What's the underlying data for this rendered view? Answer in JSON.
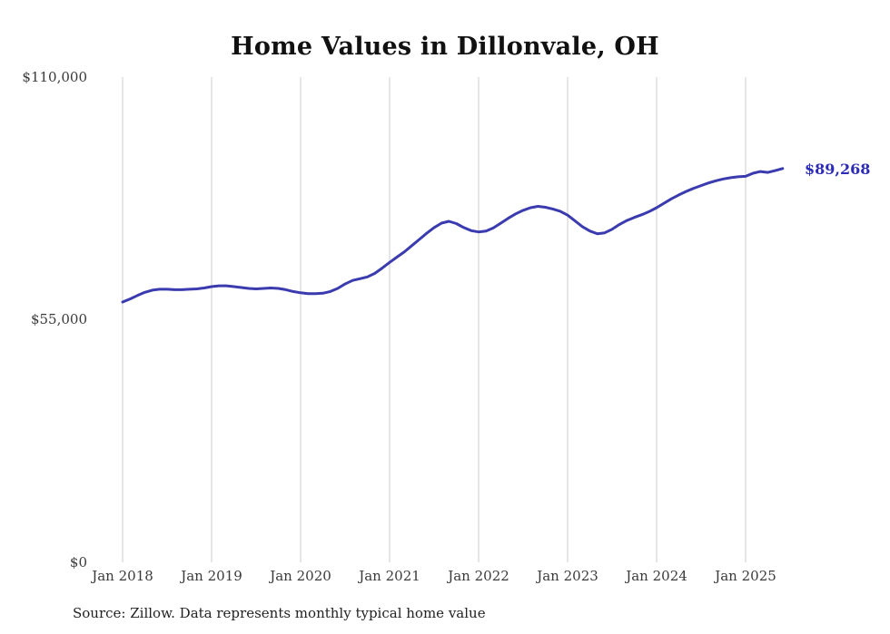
{
  "chart_data": {
    "type": "line",
    "title": "Home Values in Dillonvale, OH",
    "source": "Source: Zillow. Data represents monthly typical home value",
    "end_label": "$89,268",
    "final_value": 89268,
    "unit": "USD",
    "ylim": [
      0,
      110000
    ],
    "ytick_labels": [
      "$110,000",
      "$55,000",
      "$0"
    ],
    "xtick_labels": [
      "Jan 2018",
      "Jan 2019",
      "Jan 2020",
      "Jan 2021",
      "Jan 2022",
      "Jan 2023",
      "Jan 2024",
      "Jan 2025"
    ],
    "grid": "vertical-only",
    "legend": "none",
    "line_color": "#3b3bb0",
    "end_label_color": "#2b2bb8",
    "grid_color": "#cccccc",
    "background_color": "#ffffff",
    "x_start": "2018-01",
    "x_end": "2025-06",
    "x_frequency": "monthly",
    "months": [
      "2018-01",
      "2018-02",
      "2018-03",
      "2018-04",
      "2018-05",
      "2018-06",
      "2018-07",
      "2018-08",
      "2018-09",
      "2018-10",
      "2018-11",
      "2018-12",
      "2019-01",
      "2019-02",
      "2019-03",
      "2019-04",
      "2019-05",
      "2019-06",
      "2019-07",
      "2019-08",
      "2019-09",
      "2019-10",
      "2019-11",
      "2019-12",
      "2020-01",
      "2020-02",
      "2020-03",
      "2020-04",
      "2020-05",
      "2020-06",
      "2020-07",
      "2020-08",
      "2020-09",
      "2020-10",
      "2020-11",
      "2020-12",
      "2021-01",
      "2021-02",
      "2021-03",
      "2021-04",
      "2021-05",
      "2021-06",
      "2021-07",
      "2021-08",
      "2021-09",
      "2021-10",
      "2021-11",
      "2021-12",
      "2022-01",
      "2022-02",
      "2022-03",
      "2022-04",
      "2022-05",
      "2022-06",
      "2022-07",
      "2022-08",
      "2022-09",
      "2022-10",
      "2022-11",
      "2022-12",
      "2023-01",
      "2023-02",
      "2023-03",
      "2023-04",
      "2023-05",
      "2023-06",
      "2023-07",
      "2023-08",
      "2023-09",
      "2023-10",
      "2023-11",
      "2023-12",
      "2024-01",
      "2024-02",
      "2024-03",
      "2024-04",
      "2024-05",
      "2024-06",
      "2024-07",
      "2024-08",
      "2024-09",
      "2024-10",
      "2024-11",
      "2024-12",
      "2025-01",
      "2025-02",
      "2025-03",
      "2025-04",
      "2025-05",
      "2025-06"
    ],
    "values": [
      59000,
      59700,
      60500,
      61200,
      61700,
      61900,
      61900,
      61800,
      61800,
      61900,
      62000,
      62200,
      62500,
      62700,
      62700,
      62500,
      62300,
      62100,
      62000,
      62100,
      62200,
      62100,
      61800,
      61400,
      61100,
      60900,
      60900,
      61000,
      61400,
      62100,
      63100,
      63900,
      64300,
      64700,
      65500,
      66700,
      68000,
      69200,
      70400,
      71800,
      73200,
      74600,
      75900,
      76900,
      77300,
      76800,
      75900,
      75200,
      74900,
      75100,
      75800,
      76900,
      78000,
      79000,
      79800,
      80400,
      80700,
      80500,
      80100,
      79600,
      78700,
      77400,
      76100,
      75100,
      74500,
      74700,
      75500,
      76600,
      77500,
      78200,
      78800,
      79500,
      80400,
      81400,
      82400,
      83300,
      84100,
      84800,
      85400,
      86000,
      86500,
      86900,
      87200,
      87400,
      87500,
      88200,
      88600,
      88400,
      88800,
      89268
    ]
  }
}
